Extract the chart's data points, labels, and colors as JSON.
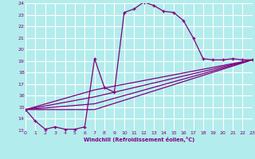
{
  "xlabel": "Windchill (Refroidissement éolien,°C)",
  "background_color": "#b3ecec",
  "grid_color": "#ffffff",
  "line_color": "#800080",
  "xlim": [
    0,
    23
  ],
  "ylim": [
    13,
    24
  ],
  "xticks": [
    0,
    1,
    2,
    3,
    4,
    5,
    6,
    7,
    8,
    9,
    10,
    11,
    12,
    13,
    14,
    15,
    16,
    17,
    18,
    19,
    20,
    21,
    22,
    23
  ],
  "yticks": [
    13,
    14,
    15,
    16,
    17,
    18,
    19,
    20,
    21,
    22,
    23,
    24
  ],
  "series": [
    [
      0,
      14.8
    ],
    [
      1,
      13.8
    ],
    [
      2,
      13.1
    ],
    [
      3,
      13.3
    ],
    [
      4,
      13.1
    ],
    [
      5,
      13.1
    ],
    [
      6,
      13.3
    ],
    [
      7,
      19.2
    ],
    [
      8,
      16.7
    ],
    [
      9,
      16.3
    ],
    [
      10,
      23.2
    ],
    [
      11,
      23.5
    ],
    [
      12,
      24.1
    ],
    [
      13,
      23.8
    ],
    [
      14,
      23.3
    ],
    [
      15,
      23.2
    ],
    [
      16,
      22.5
    ],
    [
      17,
      21.0
    ],
    [
      18,
      19.2
    ],
    [
      19,
      19.1
    ],
    [
      20,
      19.1
    ],
    [
      21,
      19.2
    ],
    [
      22,
      19.1
    ],
    [
      23,
      19.1
    ]
  ],
  "line2": [
    [
      0,
      14.8
    ],
    [
      23,
      19.1
    ]
  ],
  "line3": [
    [
      0,
      14.8
    ],
    [
      23,
      19.1
    ]
  ],
  "line4": [
    [
      0,
      14.8
    ],
    [
      23,
      19.1
    ]
  ],
  "fan_lines": [
    [
      [
        0,
        14.8
      ],
      [
        7,
        14.8
      ],
      [
        23,
        19.1
      ]
    ],
    [
      [
        0,
        14.8
      ],
      [
        7,
        15.3
      ],
      [
        23,
        19.1
      ]
    ],
    [
      [
        0,
        14.8
      ],
      [
        7,
        15.9
      ],
      [
        23,
        19.1
      ]
    ],
    [
      [
        0,
        14.8
      ],
      [
        7,
        16.5
      ],
      [
        23,
        19.1
      ]
    ]
  ]
}
